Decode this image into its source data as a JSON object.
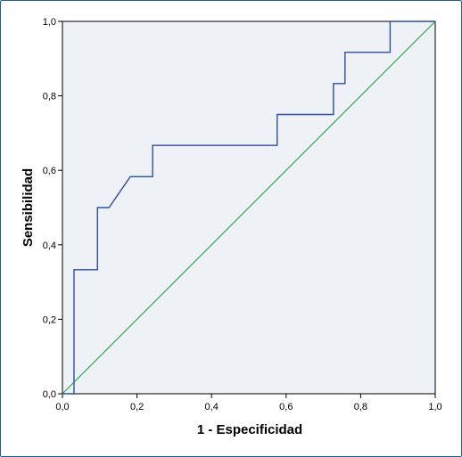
{
  "chart_data": {
    "type": "line",
    "title": "",
    "xlabel": "1 - Especificidad",
    "ylabel": "Sensibilidad",
    "xlim": [
      0,
      1
    ],
    "ylim": [
      0,
      1
    ],
    "x_tick_labels": [
      "0,0",
      "0,2",
      "0,4",
      "0,6",
      "0,8",
      "1,0"
    ],
    "y_tick_labels": [
      "0,0",
      "0,2",
      "0,4",
      "0,6",
      "0,8",
      "1,0"
    ],
    "grid": false,
    "background_color": "#eef1f6",
    "series": [
      {
        "style": "step",
        "color": "#2e4fa0",
        "points": [
          [
            0.0,
            0.0
          ],
          [
            0.031,
            0.0
          ],
          [
            0.031,
            0.333
          ],
          [
            0.094,
            0.333
          ],
          [
            0.094,
            0.5
          ],
          [
            0.125,
            0.5
          ],
          [
            0.182,
            0.583
          ],
          [
            0.242,
            0.583
          ],
          [
            0.242,
            0.667
          ],
          [
            0.576,
            0.667
          ],
          [
            0.576,
            0.75
          ],
          [
            0.727,
            0.75
          ],
          [
            0.727,
            0.833
          ],
          [
            0.758,
            0.833
          ],
          [
            0.758,
            0.917
          ],
          [
            0.879,
            0.917
          ],
          [
            0.879,
            1.0
          ],
          [
            1.0,
            1.0
          ]
        ]
      },
      {
        "style": "reference",
        "color": "#2fa84f",
        "points": [
          [
            0,
            0
          ],
          [
            1,
            1
          ]
        ]
      }
    ]
  }
}
